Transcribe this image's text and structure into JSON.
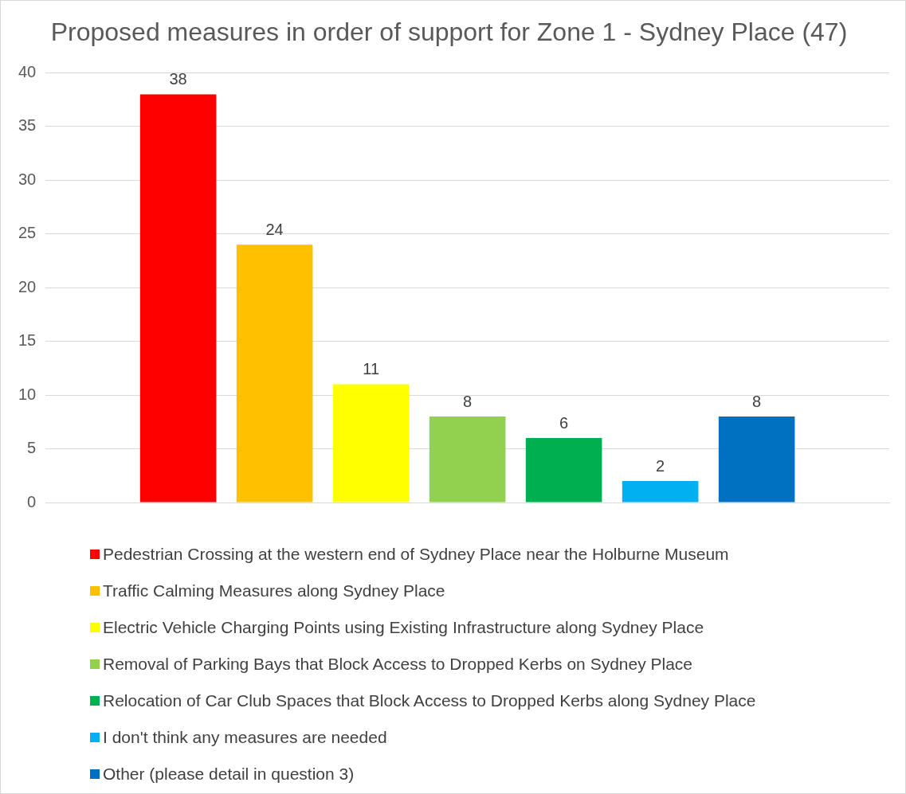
{
  "chart_data": {
    "type": "bar",
    "title": "Proposed measures in order of support for Zone 1 - Sydney Place (47)",
    "categories": [
      null
    ],
    "ylim": [
      0,
      40
    ],
    "yticks": [
      0,
      5,
      10,
      15,
      20,
      25,
      30,
      35,
      40
    ],
    "grid": "y",
    "legend": "bottom",
    "data_labels": true,
    "series": [
      {
        "name": "Pedestrian Crossing at the western end of Sydney Place near the Holburne Museum",
        "color": "#ff0000",
        "values": [
          38
        ]
      },
      {
        "name": "Traffic Calming Measures along Sydney Place",
        "color": "#ffc000",
        "values": [
          24
        ]
      },
      {
        "name": "Electric Vehicle Charging Points using Existing Infrastructure along Sydney Place",
        "color": "#ffff00",
        "values": [
          11
        ]
      },
      {
        "name": "Removal of Parking Bays that Block Access to Dropped Kerbs on Sydney Place",
        "color": "#92d050",
        "values": [
          8
        ]
      },
      {
        "name": "Relocation of Car Club Spaces that Block Access to Dropped Kerbs along Sydney Place",
        "color": "#00b050",
        "values": [
          6
        ]
      },
      {
        "name": "I don't think any measures are needed",
        "color": "#00b0f0",
        "values": [
          2
        ]
      },
      {
        "name": "Other (please detail in question 3)",
        "color": "#0070c0",
        "values": [
          8
        ]
      }
    ]
  }
}
